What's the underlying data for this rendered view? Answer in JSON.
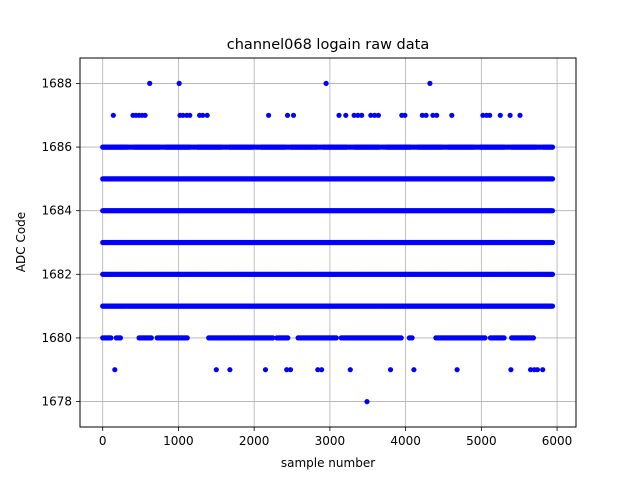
{
  "chart_data": {
    "type": "scatter",
    "title": "channel068 logain raw data",
    "xlabel": "sample number",
    "ylabel": "ADC Code",
    "xlim": [
      -300,
      6250
    ],
    "ylim": [
      1677.2,
      1688.8
    ],
    "xticks": [
      0,
      1000,
      2000,
      3000,
      4000,
      5000,
      6000
    ],
    "yticks": [
      1678,
      1680,
      1682,
      1684,
      1686,
      1688
    ],
    "grid": true,
    "marker_color": "#0000ff",
    "series": [
      {
        "n_samples": 5950,
        "dense_levels": [
          1681,
          1682,
          1683,
          1684,
          1685
        ],
        "semi_dense_levels": [
          1686
        ],
        "partial_level_1680_x_segments": [
          [
            0,
            120
          ],
          [
            180,
            240
          ],
          [
            480,
            650
          ],
          [
            720,
            1130
          ],
          [
            1400,
            2250
          ],
          [
            2300,
            2450
          ],
          [
            2580,
            3100
          ],
          [
            3150,
            3950
          ],
          [
            4050,
            4100
          ],
          [
            4400,
            5050
          ],
          [
            5120,
            5300
          ],
          [
            5400,
            5700
          ]
        ],
        "outliers": [
          {
            "x": 620,
            "y": 1688
          },
          {
            "x": 1010,
            "y": 1688
          },
          {
            "x": 2950,
            "y": 1688
          },
          {
            "x": 4320,
            "y": 1688
          },
          {
            "x": 140,
            "y": 1687
          },
          {
            "x": 400,
            "y": 1687
          },
          {
            "x": 440,
            "y": 1687
          },
          {
            "x": 480,
            "y": 1687
          },
          {
            "x": 520,
            "y": 1687
          },
          {
            "x": 560,
            "y": 1687
          },
          {
            "x": 1020,
            "y": 1687
          },
          {
            "x": 1060,
            "y": 1687
          },
          {
            "x": 1110,
            "y": 1687
          },
          {
            "x": 1150,
            "y": 1687
          },
          {
            "x": 1280,
            "y": 1687
          },
          {
            "x": 1320,
            "y": 1687
          },
          {
            "x": 1380,
            "y": 1687
          },
          {
            "x": 2190,
            "y": 1687
          },
          {
            "x": 2440,
            "y": 1687
          },
          {
            "x": 2520,
            "y": 1687
          },
          {
            "x": 3120,
            "y": 1687
          },
          {
            "x": 3210,
            "y": 1687
          },
          {
            "x": 3320,
            "y": 1687
          },
          {
            "x": 3370,
            "y": 1687
          },
          {
            "x": 3420,
            "y": 1687
          },
          {
            "x": 3540,
            "y": 1687
          },
          {
            "x": 3590,
            "y": 1687
          },
          {
            "x": 3640,
            "y": 1687
          },
          {
            "x": 3950,
            "y": 1687
          },
          {
            "x": 3990,
            "y": 1687
          },
          {
            "x": 4220,
            "y": 1687
          },
          {
            "x": 4270,
            "y": 1687
          },
          {
            "x": 4360,
            "y": 1687
          },
          {
            "x": 4410,
            "y": 1687
          },
          {
            "x": 4610,
            "y": 1687
          },
          {
            "x": 5020,
            "y": 1687
          },
          {
            "x": 5070,
            "y": 1687
          },
          {
            "x": 5110,
            "y": 1687
          },
          {
            "x": 5250,
            "y": 1687
          },
          {
            "x": 5380,
            "y": 1687
          },
          {
            "x": 5510,
            "y": 1687
          },
          {
            "x": 160,
            "y": 1679
          },
          {
            "x": 1500,
            "y": 1679
          },
          {
            "x": 1680,
            "y": 1679
          },
          {
            "x": 2150,
            "y": 1679
          },
          {
            "x": 2430,
            "y": 1679
          },
          {
            "x": 2480,
            "y": 1679
          },
          {
            "x": 2840,
            "y": 1679
          },
          {
            "x": 2890,
            "y": 1679
          },
          {
            "x": 3270,
            "y": 1679
          },
          {
            "x": 3800,
            "y": 1679
          },
          {
            "x": 4110,
            "y": 1679
          },
          {
            "x": 4680,
            "y": 1679
          },
          {
            "x": 5390,
            "y": 1679
          },
          {
            "x": 5650,
            "y": 1679
          },
          {
            "x": 5700,
            "y": 1679
          },
          {
            "x": 5740,
            "y": 1679
          },
          {
            "x": 5810,
            "y": 1679
          },
          {
            "x": 3490,
            "y": 1678
          }
        ]
      }
    ]
  }
}
